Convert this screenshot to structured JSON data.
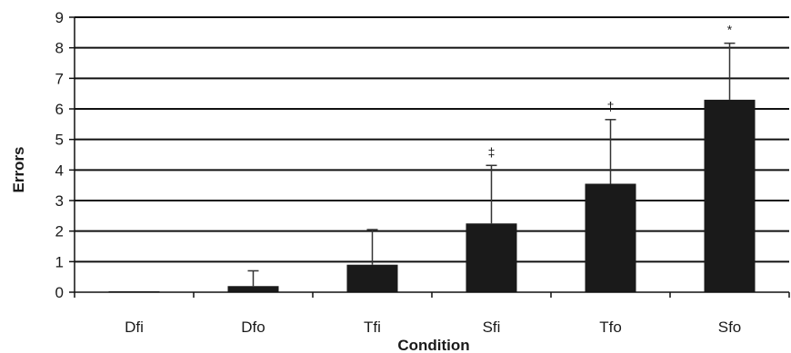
{
  "chart_data": {
    "type": "bar",
    "title": "",
    "xlabel": "Condition",
    "ylabel": "Errors",
    "categories": [
      "Dfi",
      "Dfo",
      "Tfi",
      "Sfi",
      "Tfo",
      "Sfo"
    ],
    "values": [
      0,
      0.2,
      0.9,
      2.25,
      3.55,
      6.3
    ],
    "error_upper": [
      0,
      0.7,
      2.05,
      4.15,
      5.65,
      8.15
    ],
    "annotations": [
      "",
      "",
      "",
      "‡",
      "†",
      "*"
    ],
    "ylim": [
      0,
      9
    ],
    "yticks": [
      0,
      1,
      2,
      3,
      4,
      5,
      6,
      7,
      8,
      9
    ],
    "grid": true,
    "bar_color": "#1a1a1a"
  }
}
